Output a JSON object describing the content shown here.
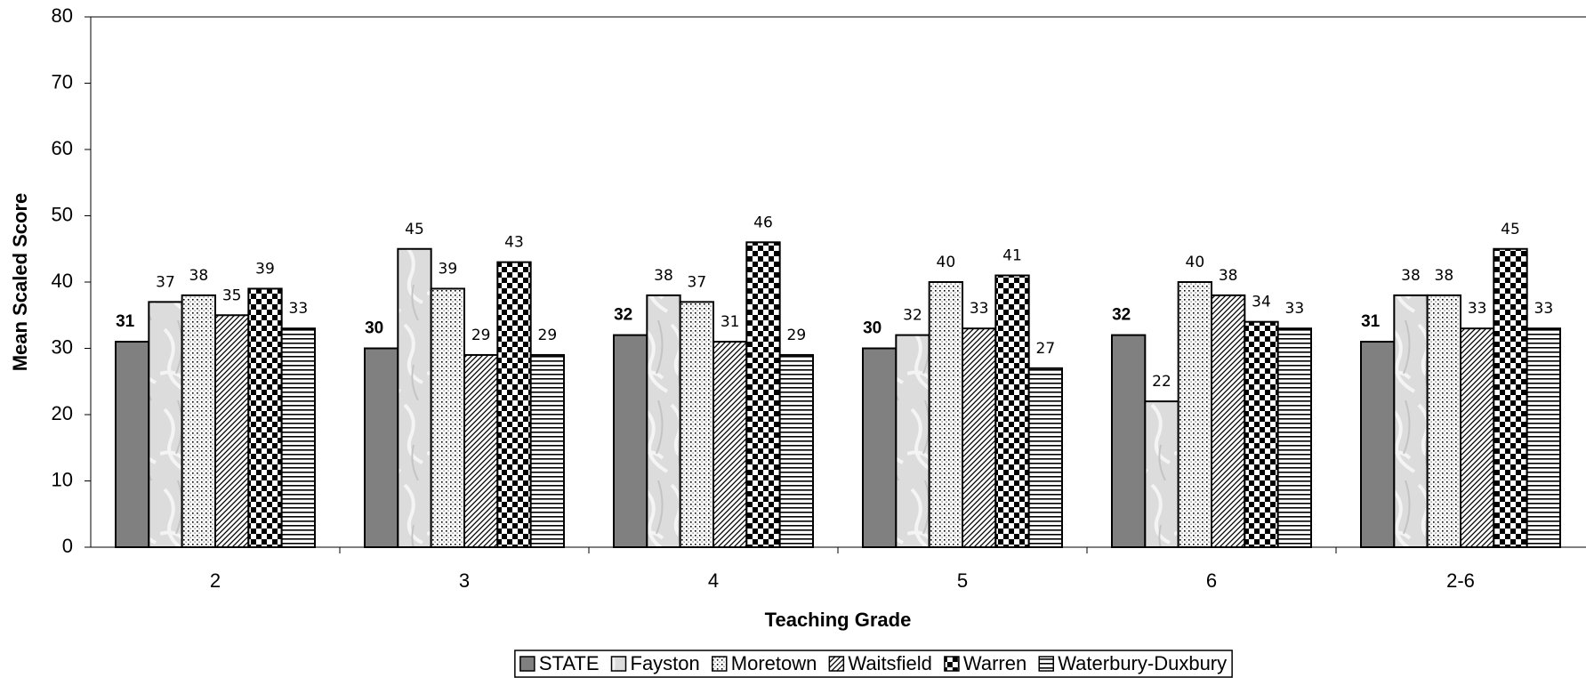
{
  "chart_data": {
    "type": "bar",
    "x_label": "Teaching Grade",
    "y_label": "Mean Scaled Score",
    "categories": [
      "2",
      "3",
      "4",
      "5",
      "6",
      "2-6"
    ],
    "series": [
      {
        "name": "STATE",
        "color": "#808080",
        "pattern": "solid",
        "bold_labels": true,
        "values": [
          31,
          30,
          32,
          30,
          32,
          31
        ]
      },
      {
        "name": "Fayston",
        "color": "#d9d9d9",
        "pattern": "marble",
        "values": [
          37,
          45,
          38,
          32,
          22,
          38
        ]
      },
      {
        "name": "Moretown",
        "color": "#000000",
        "pattern": "dots",
        "values": [
          38,
          39,
          37,
          40,
          40,
          38
        ]
      },
      {
        "name": "Waitsfield",
        "color": "#000000",
        "pattern": "diagonal",
        "values": [
          35,
          29,
          31,
          33,
          38,
          33
        ]
      },
      {
        "name": "Warren",
        "color": "#000000",
        "pattern": "checker",
        "values": [
          39,
          43,
          46,
          41,
          34,
          45
        ]
      },
      {
        "name": "Waterbury-Duxbury",
        "color": "#000000",
        "pattern": "horizontal",
        "values": [
          33,
          29,
          29,
          27,
          33,
          33
        ]
      }
    ],
    "ylim": [
      0,
      80
    ],
    "yticks": [
      0,
      10,
      20,
      30,
      40,
      50,
      60,
      70,
      80
    ],
    "legend": "bottom"
  }
}
